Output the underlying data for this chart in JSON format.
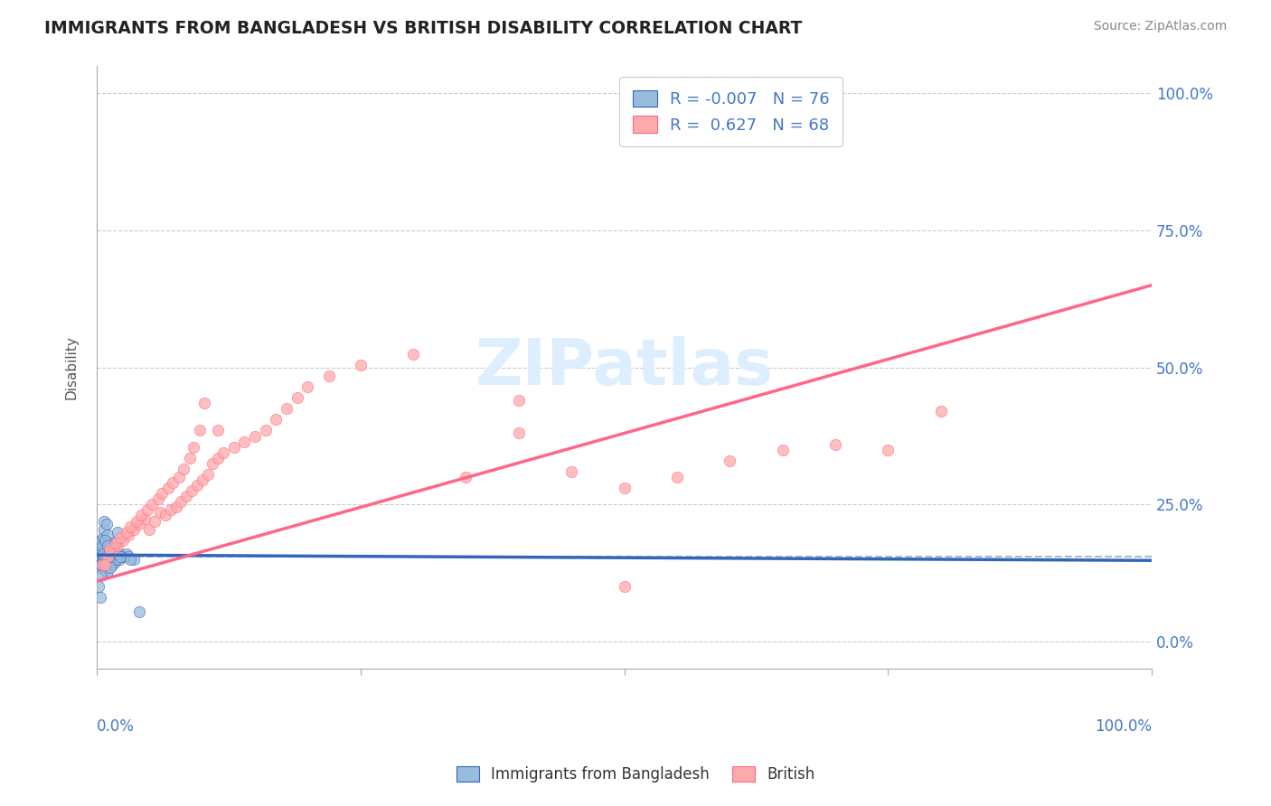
{
  "title": "IMMIGRANTS FROM BANGLADESH VS BRITISH DISABILITY CORRELATION CHART",
  "source_text": "Source: ZipAtlas.com",
  "ylabel": "Disability",
  "ytick_values": [
    0.0,
    25.0,
    50.0,
    75.0,
    100.0
  ],
  "color_blue": "#99BBDD",
  "color_blue_line": "#3366BB",
  "color_pink": "#FFAAAA",
  "color_pink_line": "#FF6688",
  "color_blue_text": "#4477CC",
  "background_color": "#FFFFFF",
  "grid_color": "#CCCCCC",
  "watermark_color": "#DDEEFF",
  "bangladesh_x": [
    0.1,
    0.15,
    0.2,
    0.25,
    0.3,
    0.35,
    0.4,
    0.45,
    0.5,
    0.55,
    0.6,
    0.65,
    0.7,
    0.75,
    0.8,
    0.85,
    0.9,
    0.95,
    1.0,
    1.05,
    1.1,
    1.15,
    1.2,
    1.25,
    1.3,
    1.35,
    1.4,
    1.45,
    1.5,
    1.55,
    1.6,
    1.65,
    1.7,
    1.75,
    1.8,
    1.9,
    2.0,
    2.1,
    2.2,
    2.5,
    2.8,
    3.0,
    3.5,
    4.0,
    0.2,
    0.3,
    0.4,
    0.5,
    0.6,
    0.7,
    0.8,
    0.9,
    1.0,
    1.1,
    1.2,
    1.4,
    1.6,
    1.8,
    2.0,
    0.3,
    0.5,
    0.7,
    0.9,
    1.1,
    1.3,
    1.5,
    1.7,
    2.0,
    0.4,
    0.6,
    0.8,
    1.0,
    1.2,
    1.6,
    2.2,
    3.2
  ],
  "bangladesh_y": [
    15.0,
    13.5,
    16.0,
    14.5,
    15.5,
    16.5,
    14.0,
    15.0,
    16.5,
    14.5,
    15.0,
    16.0,
    15.5,
    16.5,
    15.0,
    14.5,
    16.0,
    15.5,
    14.5,
    16.0,
    15.0,
    15.5,
    16.0,
    14.0,
    15.5,
    15.0,
    15.5,
    14.0,
    16.0,
    15.5,
    16.5,
    15.0,
    14.5,
    15.0,
    15.5,
    16.0,
    15.5,
    15.0,
    16.0,
    15.5,
    16.0,
    15.5,
    15.0,
    5.5,
    10.0,
    8.0,
    18.5,
    17.5,
    19.0,
    20.5,
    13.0,
    12.5,
    19.5,
    18.0,
    17.0,
    15.5,
    17.0,
    15.0,
    16.0,
    12.0,
    14.5,
    22.0,
    21.5,
    15.5,
    13.5,
    16.5,
    18.0,
    20.0,
    14.0,
    16.0,
    18.5,
    17.5,
    16.5,
    17.0,
    15.5,
    15.0
  ],
  "british_x": [
    0.5,
    1.0,
    1.5,
    2.0,
    2.5,
    3.0,
    3.5,
    4.0,
    4.5,
    5.0,
    5.5,
    6.0,
    6.5,
    7.0,
    7.5,
    8.0,
    8.5,
    9.0,
    9.5,
    10.0,
    10.5,
    11.0,
    11.5,
    12.0,
    13.0,
    14.0,
    15.0,
    16.0,
    17.0,
    18.0,
    19.0,
    20.0,
    22.0,
    25.0,
    30.0,
    35.0,
    40.0,
    45.0,
    50.0,
    55.0,
    60.0,
    65.0,
    70.0,
    75.0,
    80.0,
    0.8,
    1.2,
    1.8,
    2.2,
    2.8,
    3.2,
    3.8,
    4.2,
    4.8,
    5.2,
    5.8,
    6.2,
    6.8,
    7.2,
    7.8,
    8.2,
    8.8,
    9.2,
    9.8,
    10.2,
    11.5,
    40.0,
    50.0
  ],
  "british_y": [
    14.0,
    15.5,
    16.5,
    17.5,
    18.5,
    19.5,
    20.5,
    21.5,
    22.5,
    20.5,
    22.0,
    23.5,
    23.0,
    24.0,
    24.5,
    25.5,
    26.5,
    27.5,
    28.5,
    29.5,
    30.5,
    32.5,
    33.5,
    34.5,
    35.5,
    36.5,
    37.5,
    38.5,
    40.5,
    42.5,
    44.5,
    46.5,
    48.5,
    50.5,
    52.5,
    30.0,
    38.0,
    31.0,
    28.0,
    30.0,
    33.0,
    35.0,
    36.0,
    35.0,
    42.0,
    14.0,
    17.0,
    18.0,
    19.0,
    20.0,
    21.0,
    22.0,
    23.0,
    24.0,
    25.0,
    26.0,
    27.0,
    28.0,
    29.0,
    30.0,
    31.5,
    33.5,
    35.5,
    38.5,
    43.5,
    38.5,
    44.0,
    10.0
  ],
  "blue_line_x": [
    0.0,
    100.0
  ],
  "blue_line_y": [
    15.8,
    14.8
  ],
  "pink_line_x": [
    0.0,
    100.0
  ],
  "pink_line_y": [
    11.0,
    65.0
  ],
  "dashed_line_y": 15.5,
  "xlim": [
    0.0,
    100.0
  ],
  "ylim": [
    -5.0,
    105.0
  ]
}
